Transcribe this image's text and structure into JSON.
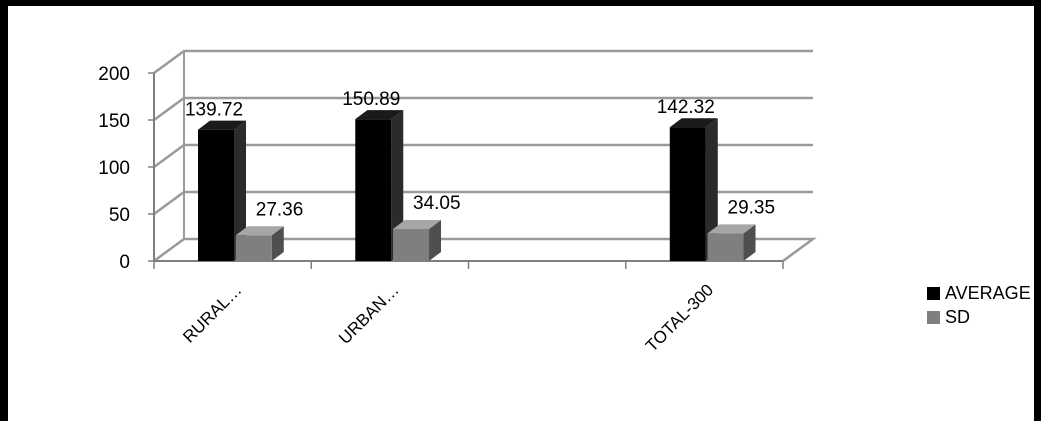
{
  "chart_data": {
    "type": "bar",
    "categories": [
      "RURAL…",
      "URBAN…",
      "",
      "TOTAL-300"
    ],
    "series": [
      {
        "name": "AVERAGE",
        "values": [
          139.72,
          150.89,
          null,
          142.32
        ],
        "labels": [
          "139.72",
          "150.89",
          "",
          "142.32"
        ],
        "color": "#000000"
      },
      {
        "name": "SD",
        "values": [
          27.36,
          34.05,
          null,
          29.35
        ],
        "labels": [
          "27.36",
          "34.05",
          "",
          "29.35"
        ],
        "color": "#7f7f7f"
      }
    ],
    "yticks": [
      "0",
      "50",
      "100",
      "150",
      "200"
    ],
    "ylim": [
      0,
      200
    ],
    "grid": true,
    "legend_position": "right",
    "style": "3d-clustered-column"
  }
}
